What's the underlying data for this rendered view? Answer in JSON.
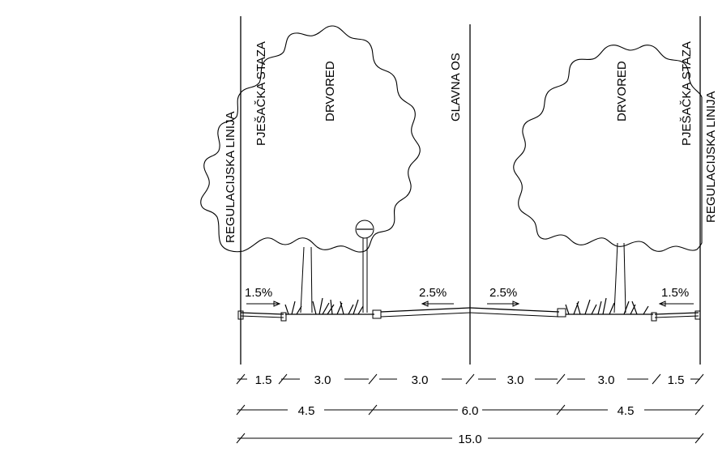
{
  "left_labels": {
    "regulation_line": "REGULACIJSKA LINIJA",
    "footpath": "PJEŠAČKA STAZA",
    "tree_row": "DRVORED"
  },
  "center_label": "GLAVNA OS",
  "right_labels": {
    "tree_row": "DRVORED",
    "footpath": "PJEŠAČKA STAZA",
    "regulation_line": "REGULACIJSKA LINIJA"
  },
  "slopes": {
    "left_footpath": "1.5%",
    "left_carriageway": "2.5%",
    "right_carriageway": "2.5%",
    "right_footpath": "1.5%"
  },
  "dimension_rows": {
    "row1": [
      "1.5",
      "3.0",
      "3.0",
      "3.0",
      "3.0",
      "1.5"
    ],
    "row2": [
      "4.5",
      "6.0",
      "4.5"
    ],
    "row3": [
      "15.0"
    ]
  }
}
